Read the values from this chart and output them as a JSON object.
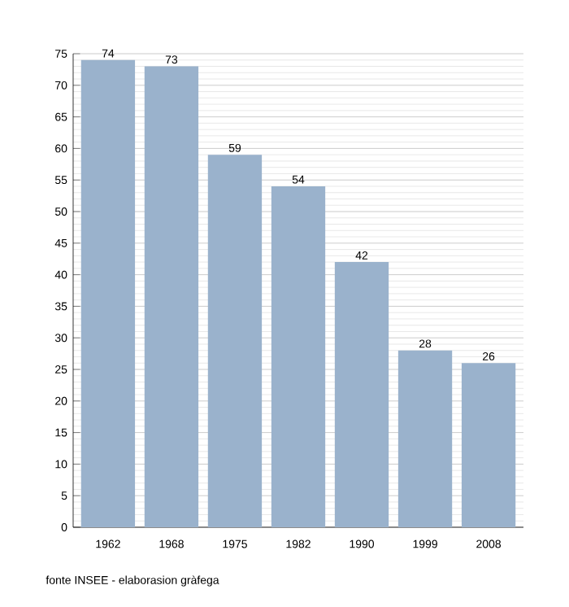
{
  "chart_data": {
    "type": "bar",
    "categories": [
      "1962",
      "1968",
      "1975",
      "1982",
      "1990",
      "1999",
      "2008"
    ],
    "values": [
      74,
      73,
      59,
      54,
      42,
      28,
      26
    ],
    "color": "#9ab2cc",
    "ylim": [
      0,
      75
    ],
    "yticks": [
      0,
      5,
      10,
      15,
      20,
      25,
      30,
      35,
      40,
      45,
      50,
      55,
      60,
      65,
      70,
      75
    ],
    "grid": "y",
    "data_labels": true,
    "annotations": [
      "fonte INSEE - elaborasion gràfega"
    ]
  }
}
